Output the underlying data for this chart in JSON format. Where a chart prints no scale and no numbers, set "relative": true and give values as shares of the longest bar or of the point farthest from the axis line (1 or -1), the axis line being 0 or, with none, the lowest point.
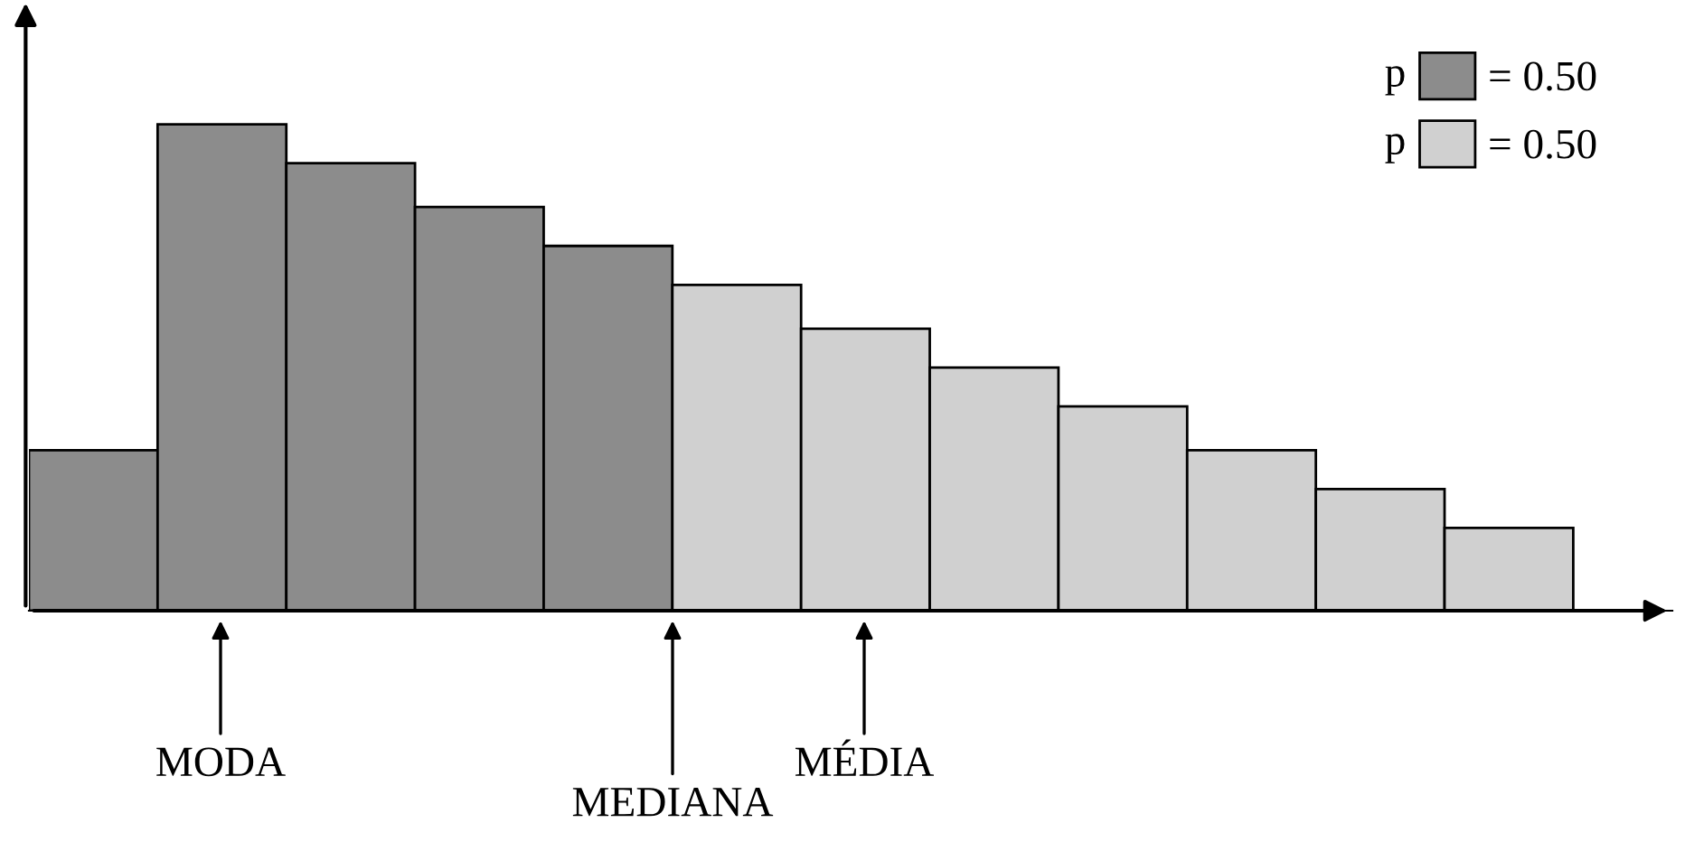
{
  "chart_data": {
    "type": "bar",
    "relative": true,
    "stacked": true,
    "legend": "top right",
    "categories": [
      null,
      null,
      null,
      null,
      null,
      null,
      null,
      null,
      null,
      null,
      null,
      null
    ],
    "series": [
      {
        "name": "= 0.50",
        "color": "#8c8c8c",
        "values": [
          0.33,
          1,
          0.92,
          0.83,
          0.75,
          null,
          null,
          null,
          null,
          null,
          null,
          null
        ]
      },
      {
        "name": "= 0.50",
        "color": "#d0d0d0",
        "values": [
          null,
          null,
          null,
          null,
          null,
          0.67,
          0.58,
          0.5,
          0.42,
          0.33,
          0.25,
          0.17
        ]
      }
    ],
    "annotations": [
      "p",
      "p",
      "MODA",
      "MEDIANA",
      "MÉDIA"
    ]
  }
}
